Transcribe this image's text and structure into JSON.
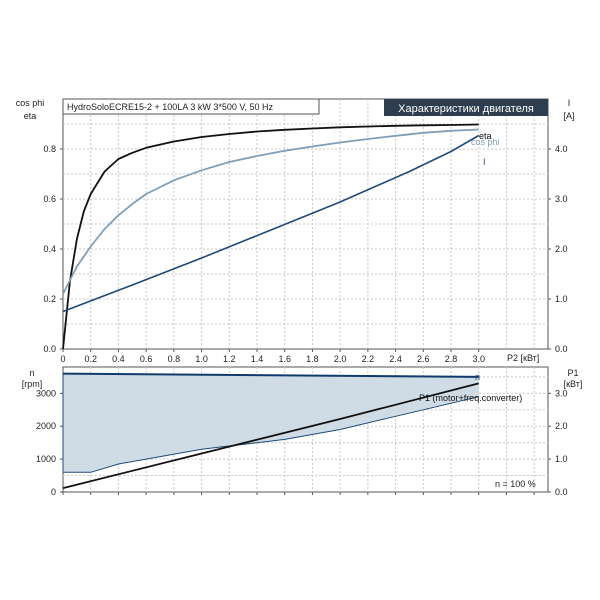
{
  "title_box": "HydroSoloECRE15-2 + 100LA  3 kW  3*500 V, 50 Hz",
  "header_badge": "Характеристики двигателя",
  "colors": {
    "eta": "#111111",
    "cos_phi": "#7f9fb8",
    "current": "#1f4a78",
    "speed": "#0f3a6a",
    "p1": "#111111",
    "band_fill": "#cfdce6",
    "band_edge": "#1f4a78",
    "badge_bg": "#2f3e4e",
    "badge_text": "#ffffff"
  },
  "top_axes": {
    "y_left_label_1": "cos phi",
    "y_left_label_2": "eta",
    "y_right_label_1": "I",
    "y_right_label_2": "[A]",
    "x_label": "P2 [кВт]",
    "x_ticks": [
      "0",
      "0.2",
      "0.4",
      "0.6",
      "0.8",
      "1.0",
      "1.2",
      "1.4",
      "1.6",
      "1.8",
      "2.0",
      "2.2",
      "2.4",
      "2.6",
      "2.8",
      "3.0"
    ],
    "y_left_ticks": [
      "0.0",
      "0.2",
      "0.4",
      "0.6",
      "0.8"
    ],
    "y_right_ticks": [
      "0.0",
      "1.0",
      "2.0",
      "3.0",
      "4.0"
    ]
  },
  "bottom_axes": {
    "y_left_label_1": "n",
    "y_left_label_2": "[rpm]",
    "y_right_label_1": "P1",
    "y_right_label_2": "[кВт]",
    "y_left_ticks": [
      "0",
      "1000",
      "2000",
      "3000"
    ],
    "y_right_ticks": [
      "0.0",
      "1.0",
      "2.0",
      "3.0"
    ],
    "note": "n = 100 %"
  },
  "chart_data": [
    {
      "type": "line",
      "panel": "top",
      "xlabel": "P2 [кВт]",
      "ylabel": "cos phi / eta",
      "ylabel_right": "I [A]",
      "xlim": [
        0,
        3.5
      ],
      "ylim": [
        0,
        1.0
      ],
      "ylim_right": [
        0,
        5.0
      ],
      "grid": true,
      "series": [
        {
          "name": "eta",
          "axis": "left",
          "x": [
            0,
            0.05,
            0.1,
            0.15,
            0.2,
            0.3,
            0.4,
            0.5,
            0.6,
            0.8,
            1.0,
            1.2,
            1.4,
            1.6,
            1.8,
            2.0,
            2.2,
            2.4,
            2.6,
            2.8,
            3.0
          ],
          "y": [
            0.0,
            0.27,
            0.44,
            0.55,
            0.62,
            0.71,
            0.76,
            0.785,
            0.805,
            0.83,
            0.848,
            0.86,
            0.87,
            0.877,
            0.882,
            0.887,
            0.89,
            0.893,
            0.895,
            0.896,
            0.898
          ]
        },
        {
          "name": "cos phi",
          "axis": "left",
          "x": [
            0,
            0.1,
            0.2,
            0.3,
            0.4,
            0.5,
            0.6,
            0.8,
            1.0,
            1.2,
            1.4,
            1.6,
            1.8,
            2.0,
            2.2,
            2.4,
            2.6,
            2.8,
            3.0
          ],
          "y": [
            0.22,
            0.33,
            0.41,
            0.48,
            0.535,
            0.58,
            0.62,
            0.675,
            0.715,
            0.748,
            0.772,
            0.793,
            0.81,
            0.826,
            0.84,
            0.853,
            0.865,
            0.873,
            0.878
          ]
        },
        {
          "name": "I",
          "axis": "right",
          "x": [
            0,
            0.5,
            1.0,
            1.5,
            2.0,
            2.5,
            2.8,
            3.0
          ],
          "y": [
            0.75,
            1.28,
            1.82,
            2.38,
            2.94,
            3.55,
            3.95,
            4.27
          ]
        }
      ]
    },
    {
      "type": "area",
      "panel": "bottom",
      "xlim": [
        0,
        3.5
      ],
      "ylim": [
        0,
        3800
      ],
      "ylim_right": [
        0,
        3.8
      ],
      "grid": true,
      "series": [
        {
          "name": "n",
          "axis": "left",
          "x": [
            0,
            3.0
          ],
          "y": [
            3600,
            3500
          ]
        },
        {
          "name": "n_min",
          "axis": "left",
          "x": [
            0,
            0.2,
            0.4,
            0.6,
            1.0,
            1.4,
            1.6,
            2.0,
            2.4,
            2.6,
            3.0
          ],
          "y": [
            600,
            600,
            850,
            1000,
            1300,
            1500,
            1600,
            1900,
            2300,
            2500,
            2900
          ]
        },
        {
          "name": "P1 (motor+freq.converter)",
          "axis": "right",
          "x": [
            0,
            1.0,
            2.0,
            3.0
          ],
          "y": [
            0.12,
            1.17,
            2.22,
            3.3
          ]
        }
      ]
    }
  ],
  "curve_labels": {
    "eta": "eta",
    "cos_phi": "cos phi",
    "current": "I",
    "speed": "n",
    "p1": "P1 (motor+freq.converter)"
  }
}
